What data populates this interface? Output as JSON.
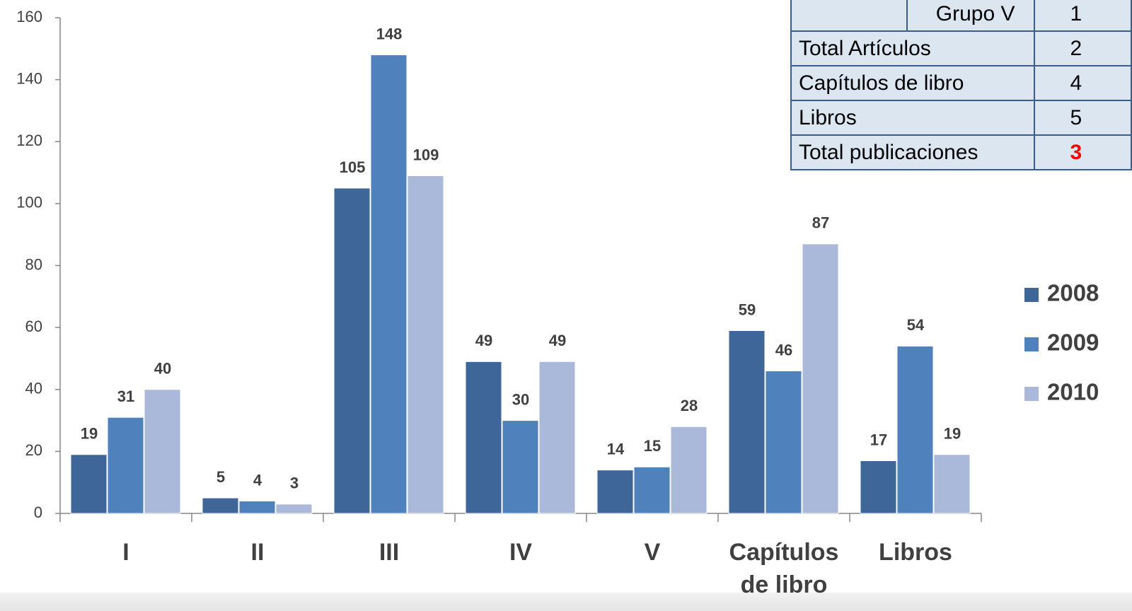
{
  "chart_data": {
    "type": "bar",
    "categories": [
      "I",
      "II",
      "III",
      "IV",
      "V",
      "Capítulos de libro",
      "Libros"
    ],
    "series": [
      {
        "name": "2008",
        "color": "#3f6699",
        "values": [
          19,
          5,
          105,
          49,
          14,
          59,
          17
        ]
      },
      {
        "name": "2009",
        "color": "#4f81bd",
        "values": [
          31,
          4,
          148,
          30,
          15,
          46,
          54
        ]
      },
      {
        "name": "2010",
        "color": "#aab9d9",
        "values": [
          40,
          3,
          109,
          49,
          28,
          87,
          19
        ]
      }
    ],
    "ylim": [
      0,
      160
    ],
    "yticks": [
      0,
      20,
      40,
      60,
      80,
      100,
      120,
      140,
      160
    ],
    "legend": "right"
  },
  "table": {
    "rows": [
      [
        "",
        "Grupo V",
        "1"
      ],
      [
        "Total Artículos",
        "2"
      ],
      [
        "Capítulos de libro",
        "4"
      ],
      [
        "Libros",
        "5"
      ],
      [
        "Total publicaciones",
        "3"
      ]
    ],
    "highlight_color": "#ff0000"
  }
}
